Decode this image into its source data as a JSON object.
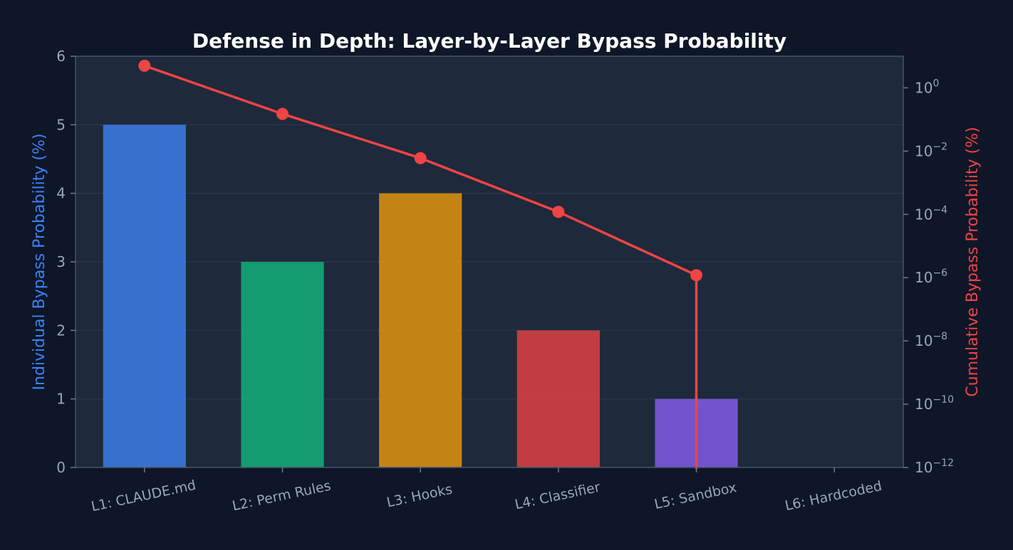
{
  "chart_data": {
    "type": "bar",
    "title": "Defense in Depth: Layer-by-Layer Bypass Probability",
    "categories": [
      "L1: CLAUDE.md",
      "L2: Perm Rules",
      "L3: Hooks",
      "L4: Classifier",
      "L5: Sandbox",
      "L6: Hardcoded"
    ],
    "ylabel": "Individual Bypass Probability (%)",
    "ylim": [
      0,
      6
    ],
    "yticks": [
      "0",
      "1",
      "2",
      "3",
      "4",
      "5",
      "6"
    ],
    "series": [
      {
        "type": "bar",
        "axis": "left",
        "values": [
          5,
          3,
          4,
          2,
          1,
          0
        ],
        "colors": [
          "#3b76dc",
          "#12a676",
          "#d38b12",
          "#cf3f44",
          "#7b58db",
          "#7a7a7a"
        ]
      },
      {
        "type": "line",
        "axis": "right",
        "scale": "log",
        "values": [
          5,
          0.15,
          0.006,
          0.00012,
          1.2e-06,
          0
        ],
        "color": "#ef4444"
      }
    ],
    "y2label": "Cumulative Bypass Probability (%)",
    "y2lim_exponents": [
      -12,
      1
    ],
    "y2ticks": [
      {
        "base": "10",
        "exp": "0",
        "value": 0
      },
      {
        "base": "10",
        "exp": "−2",
        "value": -2
      },
      {
        "base": "10",
        "exp": "−4",
        "value": -4
      },
      {
        "base": "10",
        "exp": "−6",
        "value": -6
      },
      {
        "base": "10",
        "exp": "−8",
        "value": -8
      },
      {
        "base": "10",
        "exp": "−10",
        "value": -10
      },
      {
        "base": "10",
        "exp": "−12",
        "value": -12
      }
    ],
    "grid": true,
    "colors": {
      "background": "#0e1628",
      "plot_background": "#1e293b",
      "left_axis_label": "#3b82f6",
      "right_axis_label": "#ef4444",
      "tick_text": "#9aa6b8"
    }
  }
}
